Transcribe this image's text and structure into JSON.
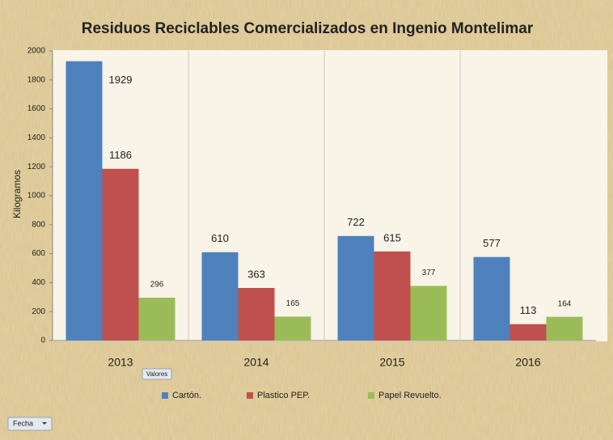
{
  "chart_data": {
    "type": "bar",
    "title": "Residuos Reciclables Comercializados en Ingenio Montelimar",
    "y_label": "Kilogramos",
    "categories": [
      "2013",
      "2014",
      "2015",
      "2016"
    ],
    "series": [
      {
        "name": "Cartón.",
        "color": "#4f81bd",
        "values": [
          1929,
          610,
          722,
          577
        ]
      },
      {
        "name": "Plastico PEP.",
        "color": "#c0504d",
        "values": [
          1186,
          363,
          615,
          113
        ]
      },
      {
        "name": "Papel Revuelto.",
        "color": "#9bbb59",
        "values": [
          296,
          165,
          377,
          164
        ]
      }
    ],
    "ylim": [
      0,
      2000
    ],
    "yticks": [
      0,
      200,
      400,
      600,
      800,
      1000,
      1200,
      1400,
      1600,
      1800,
      2000
    ],
    "category_dividers": true,
    "legend": "bottom",
    "pivot_fields": {
      "values": "Valores",
      "filter": "Fecha"
    }
  }
}
